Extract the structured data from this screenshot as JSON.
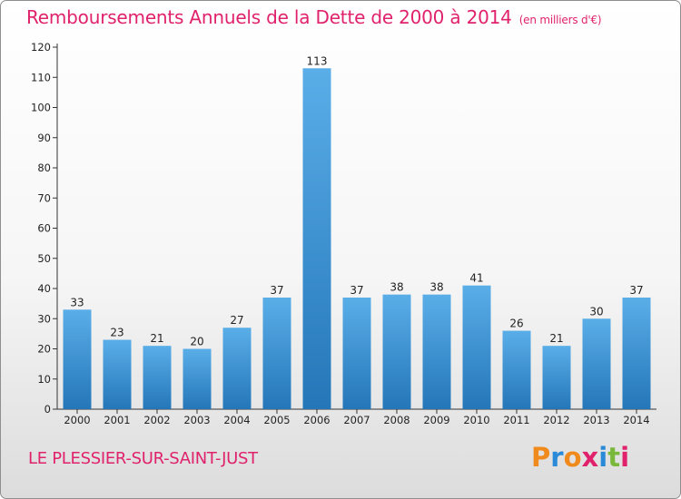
{
  "header": {
    "title": "Remboursements Annuels de la Dette de 2000 à 2014",
    "unit": "(en milliers d'€)"
  },
  "footer": {
    "commune": "LE PLESSIER-SUR-SAINT-JUST",
    "logo_text": "Proxiti",
    "logo_colors": [
      "#f08a1c",
      "#2a8ad8",
      "#f08a1c",
      "#e0226c",
      "#2a8ad8",
      "#7ab83c",
      "#e0226c"
    ]
  },
  "colors": {
    "title": "#e0226c",
    "bar_top": "#5aaee8",
    "bar_bottom": "#2476b8",
    "axis": "#333333"
  },
  "chart_data": {
    "type": "bar",
    "title": "Remboursements Annuels de la Dette de 2000 à 2014",
    "subtitle": "(en milliers d'€)",
    "xlabel": "",
    "ylabel": "",
    "categories": [
      "2000",
      "2001",
      "2002",
      "2003",
      "2004",
      "2005",
      "2006",
      "2007",
      "2008",
      "2009",
      "2010",
      "2011",
      "2012",
      "2013",
      "2014"
    ],
    "values": [
      33,
      23,
      21,
      20,
      27,
      37,
      113,
      37,
      38,
      38,
      41,
      26,
      21,
      30,
      37
    ],
    "data_labels": [
      "33",
      "23",
      "21",
      "20",
      "27",
      "37",
      "113",
      "37",
      "38",
      "38",
      "41",
      "26",
      "21",
      "30",
      "37"
    ],
    "ylim": [
      0,
      120
    ],
    "yticks": [
      0,
      10,
      20,
      30,
      40,
      50,
      60,
      70,
      80,
      90,
      100,
      110,
      120
    ],
    "grid": false,
    "legend": "none"
  }
}
